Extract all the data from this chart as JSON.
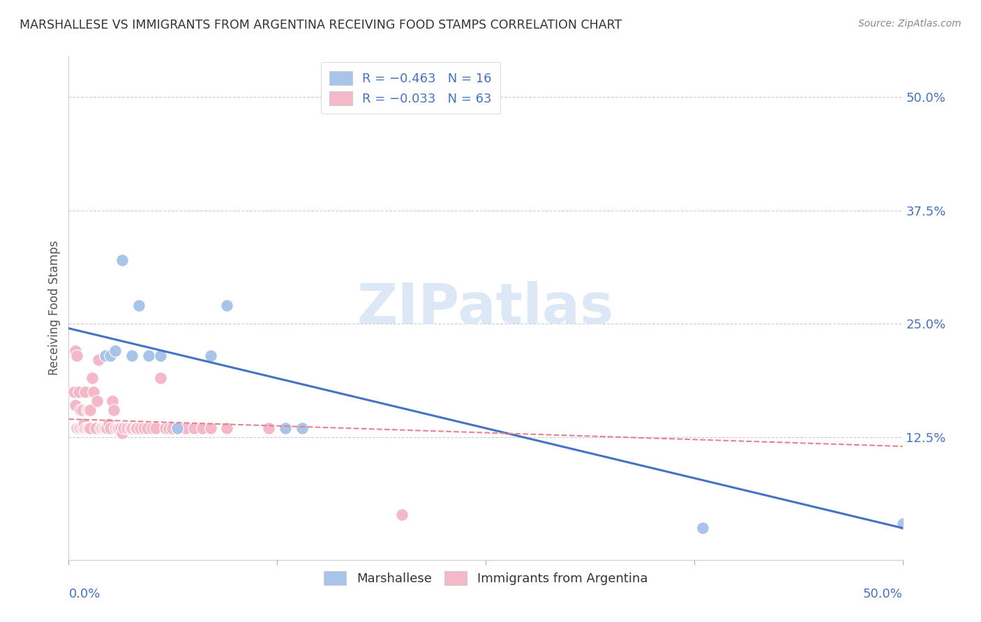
{
  "title": "MARSHALLESE VS IMMIGRANTS FROM ARGENTINA RECEIVING FOOD STAMPS CORRELATION CHART",
  "source": "Source: ZipAtlas.com",
  "ylabel": "Receiving Food Stamps",
  "right_yticks": [
    "50.0%",
    "37.5%",
    "25.0%",
    "12.5%"
  ],
  "right_ytick_vals": [
    0.5,
    0.375,
    0.25,
    0.125
  ],
  "xlim": [
    0.0,
    0.5
  ],
  "ylim": [
    -0.01,
    0.545
  ],
  "blue_scatter_color": "#a8c4e8",
  "pink_scatter_color": "#f5b8c8",
  "blue_line_color": "#4472c4",
  "pink_line_color": "#e8808e",
  "grid_color": "#cccccc",
  "bg_color": "#ffffff",
  "watermark_text": "ZIPatlas",
  "watermark_color": "#dce8f5",
  "marshallese_x": [
    0.022,
    0.025,
    0.028,
    0.032,
    0.038,
    0.042,
    0.048,
    0.055,
    0.065,
    0.085,
    0.095,
    0.13,
    0.14,
    0.38,
    0.5,
    0.5
  ],
  "marshallese_y": [
    0.215,
    0.215,
    0.22,
    0.32,
    0.215,
    0.27,
    0.215,
    0.215,
    0.135,
    0.215,
    0.27,
    0.135,
    0.135,
    0.025,
    0.03,
    0.03
  ],
  "argentina_x": [
    0.003,
    0.004,
    0.004,
    0.005,
    0.005,
    0.006,
    0.006,
    0.007,
    0.007,
    0.008,
    0.008,
    0.009,
    0.009,
    0.01,
    0.01,
    0.011,
    0.011,
    0.012,
    0.012,
    0.013,
    0.013,
    0.014,
    0.015,
    0.016,
    0.017,
    0.018,
    0.019,
    0.02,
    0.021,
    0.022,
    0.023,
    0.024,
    0.025,
    0.026,
    0.027,
    0.028,
    0.029,
    0.03,
    0.031,
    0.032,
    0.033,
    0.035,
    0.037,
    0.038,
    0.04,
    0.041,
    0.043,
    0.045,
    0.047,
    0.05,
    0.052,
    0.055,
    0.058,
    0.06,
    0.062,
    0.065,
    0.07,
    0.075,
    0.08,
    0.085,
    0.095,
    0.12,
    0.2
  ],
  "argentina_y": [
    0.175,
    0.16,
    0.22,
    0.135,
    0.215,
    0.135,
    0.175,
    0.135,
    0.155,
    0.135,
    0.155,
    0.135,
    0.14,
    0.135,
    0.175,
    0.135,
    0.155,
    0.135,
    0.155,
    0.135,
    0.155,
    0.19,
    0.175,
    0.135,
    0.165,
    0.21,
    0.135,
    0.135,
    0.135,
    0.135,
    0.135,
    0.14,
    0.135,
    0.165,
    0.155,
    0.135,
    0.135,
    0.135,
    0.135,
    0.13,
    0.135,
    0.135,
    0.135,
    0.135,
    0.135,
    0.135,
    0.135,
    0.135,
    0.135,
    0.135,
    0.135,
    0.19,
    0.135,
    0.135,
    0.135,
    0.135,
    0.135,
    0.135,
    0.135,
    0.135,
    0.135,
    0.135,
    0.04
  ],
  "blue_trendline_x": [
    0.0,
    0.5
  ],
  "blue_trendline_y": [
    0.245,
    0.025
  ],
  "pink_trendline_x": [
    0.0,
    0.5
  ],
  "pink_trendline_y": [
    0.145,
    0.115
  ],
  "legend1_label": "R = −0.463   N = 16",
  "legend2_label": "R = −0.033   N = 63",
  "bottom_legend1": "Marshallese",
  "bottom_legend2": "Immigrants from Argentina"
}
